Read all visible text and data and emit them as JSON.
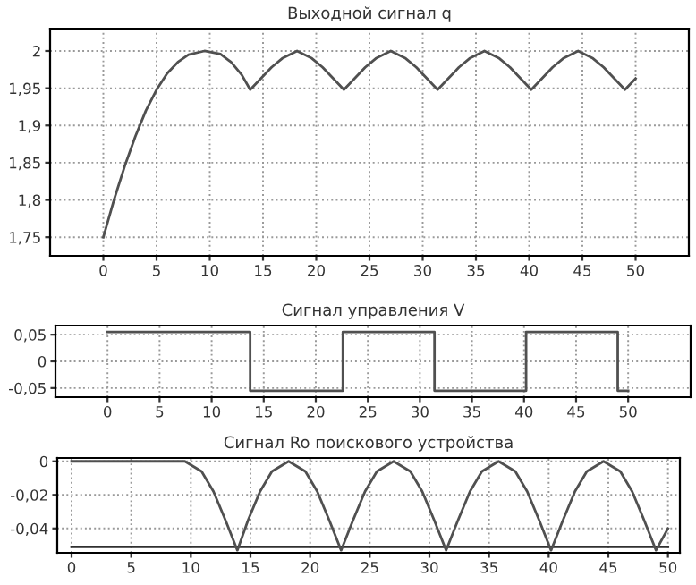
{
  "chart_data": [
    {
      "type": "line",
      "title": "Выходной сигнал q",
      "xlim": [
        -5,
        55
      ],
      "ylim": [
        1.725,
        2.03
      ],
      "grid": true,
      "xticks": [
        0,
        5,
        10,
        15,
        20,
        25,
        30,
        35,
        40,
        45,
        50
      ],
      "yticks": [
        {
          "value": 1.75,
          "label": "1,75"
        },
        {
          "value": 1.8,
          "label": "1,8"
        },
        {
          "value": 1.85,
          "label": "1,85"
        },
        {
          "value": 1.9,
          "label": "1,9"
        },
        {
          "value": 1.95,
          "label": "1,95"
        },
        {
          "value": 2,
          "label": "2"
        }
      ],
      "series": [
        {
          "color": "#505050",
          "x": [
            0,
            1,
            2,
            3,
            4,
            5,
            6,
            7,
            8,
            9.5,
            11,
            12,
            13,
            13.8,
            14.8,
            15.8,
            16.8,
            18.2,
            19.6,
            20.6,
            21.6,
            22.6,
            23.6,
            24.6,
            25.6,
            27,
            28.4,
            29.4,
            30.4,
            31.4,
            32.4,
            33.4,
            34.4,
            35.8,
            37.2,
            38.2,
            39.2,
            40.2,
            41.2,
            42.2,
            43.2,
            44.6,
            46,
            47,
            48,
            49,
            50
          ],
          "values": [
            1.75,
            1.8,
            1.845,
            1.885,
            1.92,
            1.948,
            1.97,
            1.985,
            1.995,
            2.0,
            1.996,
            1.985,
            1.968,
            1.948,
            1.963,
            1.978,
            1.99,
            2.0,
            1.99,
            1.978,
            1.963,
            1.948,
            1.963,
            1.978,
            1.99,
            2.0,
            1.99,
            1.978,
            1.963,
            1.948,
            1.963,
            1.978,
            1.99,
            2.0,
            1.99,
            1.978,
            1.963,
            1.948,
            1.963,
            1.978,
            1.99,
            2.0,
            1.99,
            1.978,
            1.963,
            1.948,
            1.963
          ]
        }
      ]
    },
    {
      "type": "step",
      "title": "Сигнал управления V",
      "xlim": [
        -5,
        56
      ],
      "ylim": [
        -0.067,
        0.067
      ],
      "grid": true,
      "xticks": [
        0,
        5,
        10,
        15,
        20,
        25,
        30,
        35,
        40,
        45,
        50
      ],
      "yticks": [
        {
          "value": -0.05,
          "label": "-0,05"
        },
        0,
        {
          "value": 0.05,
          "label": "0,05"
        }
      ],
      "series": [
        {
          "color": "#505050",
          "x": [
            0,
            13.7,
            22.6,
            31.4,
            40.2,
            49,
            50
          ],
          "values": [
            0.055,
            -0.055,
            0.055,
            -0.055,
            0.055,
            -0.055,
            -0.055
          ]
        }
      ]
    },
    {
      "type": "line",
      "title": "Сигнал Ro поискового устройства",
      "xlim": [
        -1.2,
        51
      ],
      "ylim": [
        -0.0545,
        0.002
      ],
      "grid": true,
      "xticks": [
        0,
        5,
        10,
        15,
        20,
        25,
        30,
        35,
        40,
        45,
        50
      ],
      "yticks": [
        {
          "value": -0.04,
          "label": "-0,04"
        },
        {
          "value": -0.02,
          "label": "-0,02"
        },
        0
      ],
      "series": [
        {
          "color": "#303030",
          "x": [
            0,
            50
          ],
          "values": [
            -0.051,
            -0.051
          ]
        },
        {
          "color": "#505050",
          "x": [
            0,
            9.5,
            10.9,
            11.9,
            12.9,
            13.9,
            14.8,
            15.8,
            16.8,
            18.2,
            19.6,
            20.6,
            21.6,
            22.6,
            23.6,
            24.6,
            25.6,
            27,
            28.4,
            29.4,
            30.4,
            31.4,
            32.4,
            33.4,
            34.4,
            35.8,
            37.2,
            38.2,
            39.2,
            40.2,
            41.2,
            42.2,
            43.2,
            44.6,
            46,
            47,
            48,
            49,
            50
          ],
          "values": [
            0,
            0,
            -0.006,
            -0.018,
            -0.035,
            -0.053,
            -0.035,
            -0.018,
            -0.006,
            0,
            -0.006,
            -0.018,
            -0.035,
            -0.053,
            -0.035,
            -0.018,
            -0.006,
            0,
            -0.006,
            -0.018,
            -0.035,
            -0.053,
            -0.035,
            -0.018,
            -0.006,
            0,
            -0.006,
            -0.018,
            -0.035,
            -0.053,
            -0.035,
            -0.018,
            -0.006,
            0,
            -0.006,
            -0.018,
            -0.035,
            -0.053,
            -0.04
          ]
        }
      ]
    }
  ]
}
